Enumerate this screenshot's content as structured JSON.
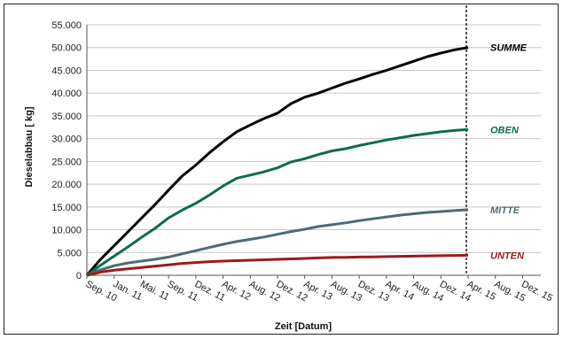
{
  "chart_data": {
    "type": "line",
    "title": "",
    "xlabel": "Zeit [Datum]",
    "ylabel": "Dieselabbau [ kg]",
    "ylim": [
      0,
      55000
    ],
    "y_ticks": [
      0,
      5000,
      10000,
      15000,
      20000,
      25000,
      30000,
      35000,
      40000,
      45000,
      50000,
      55000
    ],
    "y_tick_labels": [
      "0",
      "5.000",
      "10.000",
      "15.000",
      "20.000",
      "25.000",
      "30.000",
      "35.000",
      "40.000",
      "45.000",
      "50.000",
      "55.000"
    ],
    "x_tick_labels": [
      "Sep. 10",
      "Jan. 11",
      "Mai. 11",
      "Sep. 11",
      "Dez. 11",
      "Apr. 12",
      "Aug. 12",
      "Dez. 12",
      "Apr. 13",
      "Aug. 13",
      "Dez. 13",
      "Apr. 14",
      "Aug. 14",
      "Dez. 14",
      "Apr. 15",
      "Aug. 15",
      "Dez. 15"
    ],
    "marker_line_at": "Apr. 15",
    "grid": "horizontal",
    "legend": "labels at right end of each line",
    "series": [
      {
        "name": "SUMME",
        "color": "#000000",
        "x": [
          0,
          0.5,
          1,
          1.5,
          2,
          2.5,
          3,
          3.5,
          4,
          4.5,
          5,
          5.5,
          6,
          6.5,
          7,
          7.5,
          8,
          8.5,
          9,
          9.5,
          10,
          10.5,
          11,
          11.5,
          12,
          12.5,
          13,
          13.5,
          14
        ],
        "values": [
          0,
          3500,
          6500,
          9500,
          12500,
          15500,
          18700,
          21800,
          24200,
          26900,
          29300,
          31500,
          33000,
          34400,
          35600,
          37700,
          39100,
          40000,
          41100,
          42200,
          43100,
          44100,
          45000,
          46000,
          47000,
          48000,
          48800,
          49500,
          50000
        ]
      },
      {
        "name": "OBEN",
        "color": "#0f6b50",
        "x": [
          0,
          0.5,
          1,
          1.5,
          2,
          2.5,
          3,
          3.5,
          4,
          4.5,
          5,
          5.5,
          6,
          6.5,
          7,
          7.5,
          8,
          8.5,
          9,
          9.5,
          10,
          10.5,
          11,
          11.5,
          12,
          12.5,
          13,
          13.5,
          14
        ],
        "values": [
          0,
          2200,
          4200,
          6200,
          8300,
          10300,
          12600,
          14300,
          15800,
          17600,
          19600,
          21300,
          22000,
          22700,
          23600,
          24900,
          25600,
          26500,
          27300,
          27800,
          28500,
          29100,
          29700,
          30200,
          30700,
          31100,
          31500,
          31800,
          32000
        ]
      },
      {
        "name": "MITTE",
        "color": "#4d6a78",
        "x": [
          0,
          0.5,
          1,
          1.5,
          2,
          2.5,
          3,
          3.5,
          4,
          4.5,
          5,
          5.5,
          6,
          6.5,
          7,
          7.5,
          8,
          8.5,
          9,
          9.5,
          10,
          10.5,
          11,
          11.5,
          12,
          12.5,
          13,
          13.5,
          14
        ],
        "values": [
          0,
          1200,
          2100,
          2700,
          3100,
          3500,
          4000,
          4700,
          5400,
          6100,
          6800,
          7400,
          7900,
          8400,
          9000,
          9600,
          10100,
          10700,
          11100,
          11500,
          12000,
          12400,
          12800,
          13200,
          13500,
          13800,
          14000,
          14200,
          14400
        ]
      },
      {
        "name": "UNTEN",
        "color": "#9b1b1b",
        "x": [
          0,
          0.5,
          1,
          1.5,
          2,
          2.5,
          3,
          3.5,
          4,
          4.5,
          5,
          5.5,
          6,
          6.5,
          7,
          7.5,
          8,
          8.5,
          9,
          9.5,
          10,
          10.5,
          11,
          11.5,
          12,
          12.5,
          13,
          13.5,
          14
        ],
        "values": [
          0,
          700,
          1100,
          1400,
          1700,
          2000,
          2300,
          2600,
          2800,
          3000,
          3100,
          3200,
          3300,
          3400,
          3500,
          3600,
          3700,
          3800,
          3900,
          3950,
          4000,
          4050,
          4100,
          4150,
          4200,
          4250,
          4300,
          4350,
          4400
        ]
      }
    ]
  }
}
